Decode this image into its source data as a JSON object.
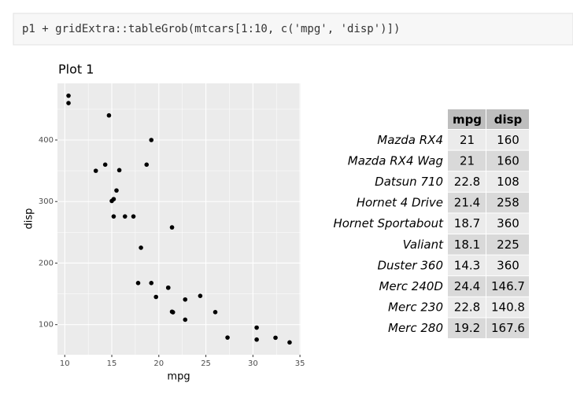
{
  "code": "p1 + gridExtra::tableGrob(mtcars[1:10, c('mpg', 'disp')])",
  "chart_data": {
    "type": "scatter",
    "title": "Plot 1",
    "xlabel": "mpg",
    "ylabel": "disp",
    "x": [
      21,
      21,
      22.8,
      21.4,
      18.7,
      18.1,
      14.3,
      24.4,
      22.8,
      19.2,
      17.8,
      16.4,
      17.3,
      15.2,
      10.4,
      10.4,
      14.7,
      32.4,
      30.4,
      33.9,
      21.5,
      15.5,
      15.2,
      13.3,
      19.2,
      27.3,
      26,
      30.4,
      15.8,
      19.7,
      15,
      21.4
    ],
    "values": [
      160,
      160,
      108,
      258,
      360,
      225,
      360,
      146.7,
      140.8,
      167.6,
      167.6,
      275.8,
      275.8,
      275.8,
      472,
      460,
      440,
      78.7,
      75.7,
      71.1,
      120.1,
      318,
      304,
      350,
      400,
      79,
      120.3,
      95.1,
      351,
      145,
      301,
      121
    ],
    "color": "#000000",
    "xlim": [
      9.225,
      35.075
    ],
    "xticks": [
      10,
      15,
      20,
      25,
      30,
      35
    ],
    "ylim": [
      51.055,
      492.045
    ],
    "yticks": [
      100,
      200,
      300,
      400
    ],
    "grid": true
  },
  "table": {
    "columns": [
      "mpg",
      "disp"
    ],
    "rows": [
      [
        "Mazda RX4",
        "21",
        "160"
      ],
      [
        "Mazda RX4 Wag",
        "21",
        "160"
      ],
      [
        "Datsun 710",
        "22.8",
        "108"
      ],
      [
        "Hornet 4 Drive",
        "21.4",
        "258"
      ],
      [
        "Hornet Sportabout",
        "18.7",
        "360"
      ],
      [
        "Valiant",
        "18.1",
        "225"
      ],
      [
        "Duster 360",
        "14.3",
        "360"
      ],
      [
        "Merc 240D",
        "24.4",
        "146.7"
      ],
      [
        "Merc 230",
        "22.8",
        "140.8"
      ],
      [
        "Merc 280",
        "19.2",
        "167.6"
      ]
    ]
  }
}
